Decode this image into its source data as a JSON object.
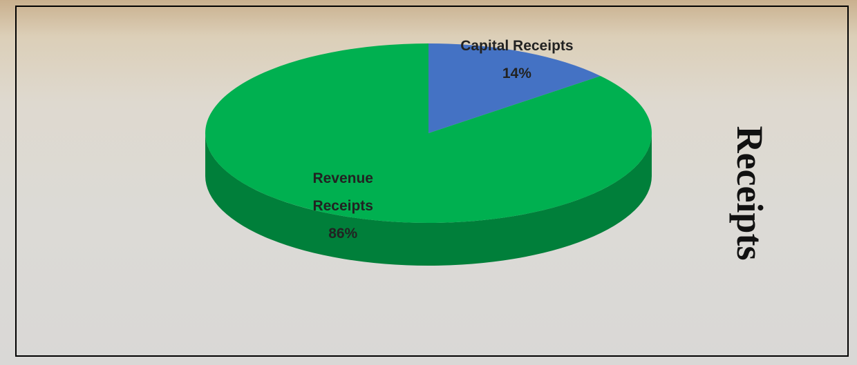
{
  "chart_data": {
    "type": "pie",
    "title": "Receipts",
    "categories": [
      "Capital Receipts",
      "Revenue Receipts"
    ],
    "values": [
      14,
      86
    ],
    "value_labels": [
      "14%",
      "86%"
    ],
    "colors": [
      "#4472c4",
      "#00b050"
    ]
  }
}
